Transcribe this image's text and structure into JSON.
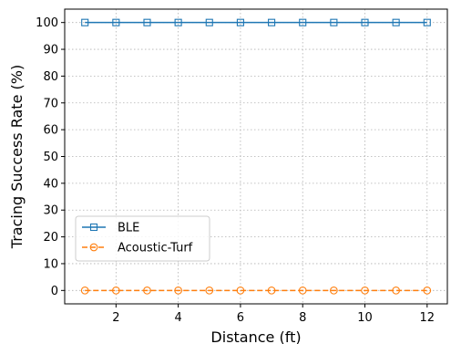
{
  "chart_data": {
    "type": "line",
    "xlabel": "Distance (ft)",
    "ylabel": "Tracing Success Rate (%)",
    "xlim": [
      0.35,
      12.65
    ],
    "ylim": [
      -5,
      105
    ],
    "xticks": [
      2,
      4,
      6,
      8,
      10,
      12
    ],
    "yticks": [
      0,
      10,
      20,
      30,
      40,
      50,
      60,
      70,
      80,
      90,
      100
    ],
    "grid": true,
    "legend_position": "center-left",
    "x": [
      1,
      2,
      3,
      4,
      5,
      6,
      7,
      8,
      9,
      10,
      11,
      12
    ],
    "series": [
      {
        "name": "BLE",
        "values": [
          100,
          100,
          100,
          100,
          100,
          100,
          100,
          100,
          100,
          100,
          100,
          100
        ],
        "color": "#1f77b4",
        "marker": "square",
        "line_style": "solid"
      },
      {
        "name": "Acoustic-Turf",
        "values": [
          0,
          0,
          0,
          0,
          0,
          0,
          0,
          0,
          0,
          0,
          0,
          0
        ],
        "color": "#ff7f0e",
        "marker": "circle",
        "line_style": "dashed"
      }
    ]
  }
}
